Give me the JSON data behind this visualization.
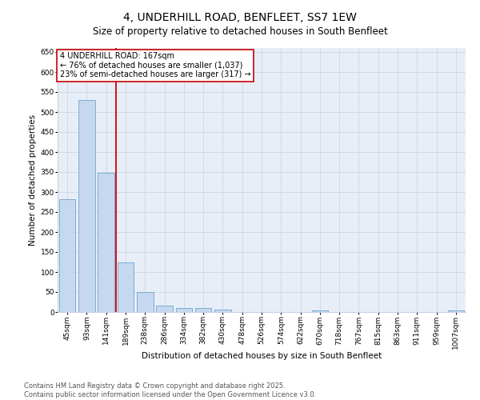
{
  "title": "4, UNDERHILL ROAD, BENFLEET, SS7 1EW",
  "subtitle": "Size of property relative to detached houses in South Benfleet",
  "xlabel": "Distribution of detached houses by size in South Benfleet",
  "ylabel": "Number of detached properties",
  "categories": [
    "45sqm",
    "93sqm",
    "141sqm",
    "189sqm",
    "238sqm",
    "286sqm",
    "334sqm",
    "382sqm",
    "430sqm",
    "478sqm",
    "526sqm",
    "574sqm",
    "622sqm",
    "670sqm",
    "718sqm",
    "767sqm",
    "815sqm",
    "863sqm",
    "911sqm",
    "959sqm",
    "1007sqm"
  ],
  "values": [
    282,
    530,
    348,
    125,
    50,
    17,
    11,
    10,
    7,
    0,
    0,
    0,
    0,
    5,
    0,
    0,
    0,
    0,
    0,
    0,
    5
  ],
  "bar_color": "#c5d8f0",
  "bar_edge_color": "#7aadd4",
  "vline_x_index": 2,
  "vline_color": "#cc0000",
  "annotation_text": "4 UNDERHILL ROAD: 167sqm\n← 76% of detached houses are smaller (1,037)\n23% of semi-detached houses are larger (317) →",
  "annotation_box_color": "#ffffff",
  "annotation_box_edge": "#cc0000",
  "ylim": [
    0,
    660
  ],
  "yticks": [
    0,
    50,
    100,
    150,
    200,
    250,
    300,
    350,
    400,
    450,
    500,
    550,
    600,
    650
  ],
  "background_color": "#ffffff",
  "plot_bg_color": "#e8eef8",
  "grid_color": "#c8d0e0",
  "footer_text": "Contains HM Land Registry data © Crown copyright and database right 2025.\nContains public sector information licensed under the Open Government Licence v3.0.",
  "title_fontsize": 10,
  "subtitle_fontsize": 8.5,
  "axis_label_fontsize": 7.5,
  "tick_fontsize": 6.5,
  "annotation_fontsize": 7,
  "footer_fontsize": 6
}
